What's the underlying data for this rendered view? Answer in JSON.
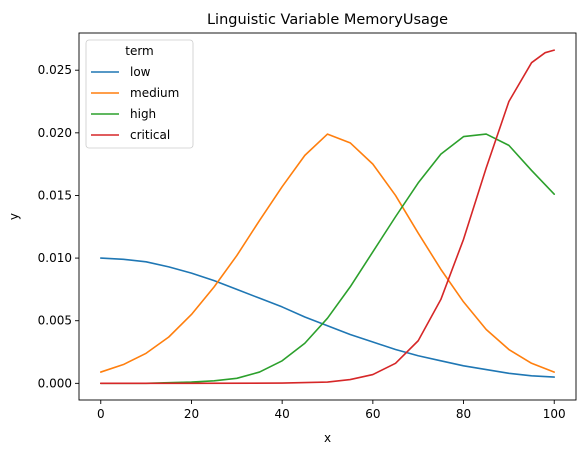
{
  "chart_data": {
    "type": "line",
    "title": "Linguistic Variable MemoryUsage",
    "xlabel": "x",
    "ylabel": "y",
    "xlim": [
      -4.8,
      104.8
    ],
    "ylim": [
      -0.00133,
      0.02797
    ],
    "x_ticks": [
      0,
      20,
      40,
      60,
      80,
      100
    ],
    "y_ticks": [
      0.0,
      0.005,
      0.01,
      0.015,
      0.02,
      0.025
    ],
    "x_tick_labels": [
      "0",
      "20",
      "40",
      "60",
      "80",
      "100"
    ],
    "y_tick_labels": [
      "0.000",
      "0.005",
      "0.010",
      "0.015",
      "0.020",
      "0.025"
    ],
    "grid": false,
    "legend": {
      "title": "term",
      "placement": "top-left"
    },
    "series": [
      {
        "name": "low",
        "color": "#1f77b4",
        "x": [
          0,
          5,
          10,
          15,
          20,
          25,
          30,
          35,
          40,
          45,
          50,
          55,
          60,
          65,
          70,
          75,
          80,
          85,
          90,
          95,
          100
        ],
        "y": [
          0.01,
          0.0099,
          0.0097,
          0.0093,
          0.0088,
          0.0082,
          0.0075,
          0.0068,
          0.0061,
          0.0053,
          0.0046,
          0.0039,
          0.0033,
          0.0027,
          0.0022,
          0.0018,
          0.0014,
          0.0011,
          0.0008,
          0.0006,
          0.0005
        ]
      },
      {
        "name": "medium",
        "color": "#ff7f0e",
        "x": [
          0,
          5,
          10,
          15,
          20,
          25,
          30,
          35,
          40,
          45,
          50,
          55,
          60,
          65,
          70,
          75,
          80,
          85,
          90,
          95,
          100
        ],
        "y": [
          0.0009,
          0.0015,
          0.0024,
          0.0037,
          0.0055,
          0.0077,
          0.0102,
          0.013,
          0.0157,
          0.0182,
          0.0199,
          0.0192,
          0.0175,
          0.015,
          0.012,
          0.0091,
          0.0065,
          0.0043,
          0.0027,
          0.0016,
          0.0009
        ]
      },
      {
        "name": "high",
        "color": "#2ca02c",
        "x": [
          0,
          10,
          20,
          25,
          30,
          35,
          40,
          45,
          50,
          55,
          60,
          65,
          70,
          75,
          80,
          85,
          90,
          95,
          100
        ],
        "y": [
          0.0,
          0.0,
          0.0001,
          0.0002,
          0.0004,
          0.0009,
          0.0018,
          0.0032,
          0.0052,
          0.0077,
          0.0105,
          0.0133,
          0.016,
          0.0183,
          0.0197,
          0.0199,
          0.019,
          0.017,
          0.0151
        ]
      },
      {
        "name": "critical",
        "color": "#d62728",
        "x": [
          0,
          20,
          40,
          50,
          55,
          60,
          65,
          70,
          75,
          80,
          85,
          90,
          95,
          98,
          100
        ],
        "y": [
          0.0,
          0.0,
          2e-05,
          0.0001,
          0.0003,
          0.0007,
          0.0016,
          0.0034,
          0.0067,
          0.0115,
          0.0172,
          0.0225,
          0.0256,
          0.0264,
          0.0266
        ]
      }
    ]
  }
}
